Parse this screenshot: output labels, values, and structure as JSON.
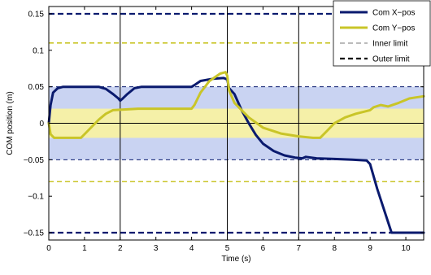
{
  "chart_data": {
    "type": "line",
    "title": "",
    "xlabel": "Time (s)",
    "ylabel": "COM position (m)",
    "xlim": [
      0,
      10.5
    ],
    "ylim": [
      -0.16,
      0.16
    ],
    "grid": false,
    "legend_position": "top-right",
    "x_ticks": [
      "0",
      "1",
      "2",
      "3",
      "4",
      "5",
      "6",
      "7",
      "8",
      "9",
      "10"
    ],
    "y_ticks": [
      "0.15",
      "0.1",
      "0.05",
      "0",
      "−0.05",
      "−0.1",
      "−0.15"
    ],
    "y_tick_values": [
      0.15,
      0.1,
      0.05,
      0,
      -0.05,
      -0.1,
      -0.15
    ],
    "x_tick_values": [
      0,
      1,
      2,
      3,
      4,
      5,
      6,
      7,
      8,
      9,
      10
    ],
    "phase_lines": [
      2,
      5,
      7
    ],
    "outer_band": [
      -0.05,
      0.05
    ],
    "inner_band": [
      -0.02,
      0.02
    ],
    "colors": {
      "x_series": "#0a1a6e",
      "y_series": "#c9c528",
      "outer_band": "#c9d3f2",
      "inner_band": "#f5f0a8"
    },
    "series": [
      {
        "name": "Com X−pos",
        "style": "solid",
        "x": [
          0,
          0.05,
          0.12,
          0.25,
          0.4,
          1.4,
          1.6,
          1.8,
          1.95,
          2.0,
          2.05,
          2.2,
          2.4,
          2.6,
          3.0,
          4.0,
          4.1,
          4.25,
          4.6,
          4.9,
          5.0,
          5.05,
          5.2,
          5.4,
          5.6,
          5.8,
          6.0,
          6.3,
          6.6,
          6.9,
          7.1,
          7.2,
          7.5,
          8.0,
          8.5,
          8.9,
          9.0,
          9.2,
          9.4,
          9.6,
          10.5
        ],
        "y": [
          0.0,
          0.025,
          0.042,
          0.048,
          0.05,
          0.05,
          0.047,
          0.04,
          0.034,
          0.031,
          0.033,
          0.04,
          0.048,
          0.05,
          0.05,
          0.05,
          0.053,
          0.058,
          0.061,
          0.062,
          0.06,
          0.048,
          0.04,
          0.018,
          0.0,
          -0.016,
          -0.028,
          -0.038,
          -0.044,
          -0.047,
          -0.048,
          -0.046,
          -0.048,
          -0.049,
          -0.05,
          -0.051,
          -0.056,
          -0.09,
          -0.12,
          -0.15,
          -0.15
        ]
      },
      {
        "name": "Com Y−pos",
        "style": "solid",
        "x": [
          0,
          0.05,
          0.15,
          0.3,
          0.9,
          1.0,
          1.2,
          1.4,
          1.6,
          1.8,
          2.5,
          4.0,
          4.08,
          4.25,
          4.5,
          4.8,
          4.95,
          5.0,
          5.05,
          5.2,
          5.6,
          6.0,
          6.5,
          7.0,
          7.4,
          7.6,
          7.8,
          8.0,
          8.3,
          8.6,
          9.0,
          9.1,
          9.3,
          9.5,
          9.8,
          10.1,
          10.5
        ],
        "y": [
          0.0,
          -0.015,
          -0.02,
          -0.02,
          -0.02,
          -0.015,
          -0.005,
          0.005,
          0.013,
          0.018,
          0.02,
          0.02,
          0.025,
          0.042,
          0.058,
          0.068,
          0.07,
          0.065,
          0.045,
          0.028,
          0.008,
          -0.006,
          -0.014,
          -0.018,
          -0.02,
          -0.02,
          -0.01,
          0.0,
          0.008,
          0.013,
          0.018,
          0.022,
          0.025,
          0.023,
          0.028,
          0.034,
          0.037
        ]
      },
      {
        "name": "Inner limit",
        "style": "dashed",
        "y_levels": [
          0.11,
          -0.08
        ]
      },
      {
        "name": "Outer limit",
        "style": "dashed",
        "y_levels": [
          0.15,
          -0.15,
          0.05,
          -0.05
        ]
      }
    ]
  }
}
